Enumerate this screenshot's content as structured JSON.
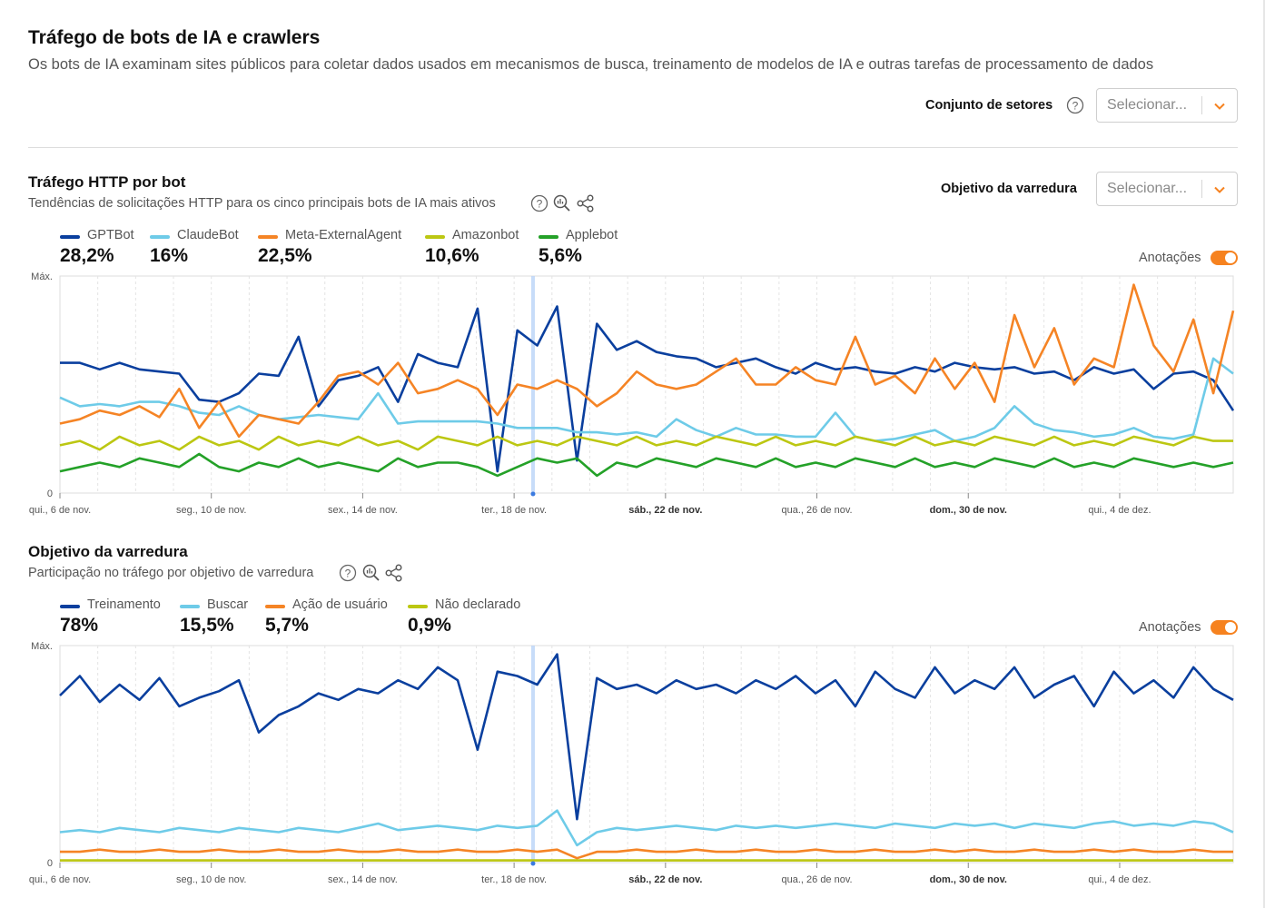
{
  "header": {
    "title": "Tráfego de bots de IA e crawlers",
    "description": "Os bots de IA examinam sites públicos para coletar dados usados em mecanismos de busca, treinamento de modelos de IA e outras tarefas de processamento de dados"
  },
  "filters": {
    "sector_label": "Conjunto de setores",
    "sector_placeholder": "Selecionar...",
    "purpose_label": "Objetivo da varredura",
    "purpose_placeholder": "Selecionar..."
  },
  "colors": {
    "dark_blue": "#0a3f9e",
    "light_blue": "#6ecbe8",
    "orange": "#f58425",
    "olive": "#bcc712",
    "green": "#24a128",
    "accent": "#f6821f"
  },
  "icons": {
    "help": "help-icon",
    "chevron": "chevron-down-icon",
    "explore": "zoom-chart-icon",
    "share": "share-icon"
  },
  "chart_data": [
    {
      "type": "line",
      "title": "Tráfego HTTP por bot",
      "subtitle": "Tendências de solicitações HTTP para os cinco principais bots de IA mais ativos",
      "annotations_label": "Anotações",
      "annotations_on": true,
      "y_top_label": "Máx.",
      "y_bottom_label": "0",
      "ylim": [
        0,
        100
      ],
      "x_ticks": [
        "qui., 6 de nov.",
        "seg., 10 de nov.",
        "sex., 14 de nov.",
        "ter., 18 de nov.",
        "sáb., 22 de nov.",
        "qua., 26 de nov.",
        "dom., 30 de nov.",
        "qui., 4 de dez."
      ],
      "bold_ticks": [
        4,
        6
      ],
      "highlight_day": 12.5,
      "days": 31,
      "series": [
        {
          "name": "GPTBot",
          "share": "28,2%",
          "color": "#0a3f9e",
          "values": [
            60,
            60,
            57,
            60,
            57,
            56,
            55,
            43,
            42,
            46,
            55,
            54,
            72,
            40,
            52,
            54,
            58,
            42,
            64,
            60,
            58,
            85,
            10,
            75,
            68,
            86,
            15,
            78,
            66,
            70,
            65,
            63,
            62,
            58,
            60,
            62,
            58,
            55,
            60,
            57,
            58,
            56,
            55,
            58,
            56,
            60,
            58,
            57,
            58,
            55,
            56,
            52,
            58,
            55,
            57,
            48,
            55,
            56,
            52,
            38
          ]
        },
        {
          "name": "ClaudeBot",
          "share": "16%",
          "color": "#6ecbe8",
          "values": [
            44,
            40,
            41,
            40,
            42,
            42,
            40,
            37,
            36,
            40,
            36,
            34,
            35,
            36,
            35,
            34,
            46,
            32,
            33,
            33,
            33,
            33,
            32,
            30,
            30,
            30,
            28,
            28,
            27,
            28,
            26,
            34,
            29,
            26,
            30,
            27,
            27,
            26,
            26,
            37,
            26,
            24,
            25,
            27,
            29,
            24,
            26,
            30,
            40,
            32,
            29,
            28,
            26,
            27,
            30,
            26,
            25,
            27,
            62,
            55
          ]
        },
        {
          "name": "Meta-ExternalAgent",
          "share": "22,5%",
          "color": "#f58425",
          "values": [
            32,
            34,
            38,
            36,
            40,
            35,
            48,
            30,
            42,
            26,
            36,
            34,
            32,
            42,
            54,
            56,
            50,
            60,
            46,
            48,
            52,
            48,
            36,
            50,
            48,
            52,
            48,
            40,
            46,
            56,
            50,
            48,
            50,
            56,
            62,
            50,
            50,
            58,
            52,
            50,
            72,
            50,
            54,
            46,
            62,
            48,
            60,
            42,
            82,
            58,
            76,
            50,
            62,
            58,
            96,
            68,
            56,
            80,
            46,
            84
          ]
        },
        {
          "name": "Amazonbot",
          "share": "10,6%",
          "color": "#bcc712",
          "values": [
            22,
            24,
            20,
            26,
            22,
            24,
            20,
            26,
            22,
            24,
            20,
            26,
            22,
            24,
            22,
            26,
            22,
            24,
            20,
            26,
            24,
            22,
            26,
            22,
            24,
            22,
            26,
            24,
            22,
            26,
            22,
            24,
            22,
            26,
            24,
            22,
            26,
            22,
            24,
            22,
            26,
            24,
            22,
            26,
            22,
            24,
            22,
            26,
            24,
            22,
            26,
            22,
            24,
            22,
            26,
            24,
            22,
            26,
            24,
            24
          ]
        },
        {
          "name": "Applebot",
          "share": "5,6%",
          "color": "#24a128",
          "values": [
            10,
            12,
            14,
            12,
            16,
            14,
            12,
            18,
            12,
            10,
            14,
            12,
            16,
            12,
            14,
            12,
            10,
            16,
            12,
            14,
            14,
            12,
            8,
            12,
            16,
            14,
            16,
            8,
            14,
            12,
            16,
            14,
            12,
            16,
            14,
            12,
            16,
            12,
            14,
            12,
            16,
            14,
            12,
            16,
            12,
            14,
            12,
            16,
            14,
            12,
            16,
            12,
            14,
            12,
            16,
            14,
            12,
            14,
            12,
            14
          ]
        }
      ]
    },
    {
      "type": "line",
      "title": "Objetivo da varredura",
      "subtitle": "Participação no tráfego por objetivo de varredura",
      "annotations_label": "Anotações",
      "annotations_on": true,
      "y_top_label": "Máx.",
      "y_bottom_label": "0",
      "ylim": [
        0,
        100
      ],
      "x_ticks": [
        "qui., 6 de nov.",
        "seg., 10 de nov.",
        "sex., 14 de nov.",
        "ter., 18 de nov.",
        "sáb., 22 de nov.",
        "qua., 26 de nov.",
        "dom., 30 de nov.",
        "qui., 4 de dez."
      ],
      "bold_ticks": [
        4,
        6
      ],
      "highlight_day": 12.5,
      "days": 31,
      "series": [
        {
          "name": "Treinamento",
          "share": "78%",
          "color": "#0a3f9e",
          "values": [
            77,
            86,
            74,
            82,
            75,
            85,
            72,
            76,
            79,
            84,
            60,
            68,
            72,
            78,
            75,
            80,
            78,
            84,
            80,
            90,
            84,
            52,
            88,
            86,
            82,
            96,
            20,
            85,
            80,
            82,
            78,
            84,
            80,
            82,
            78,
            84,
            80,
            86,
            78,
            84,
            72,
            88,
            80,
            76,
            90,
            78,
            84,
            80,
            90,
            76,
            82,
            86,
            72,
            88,
            78,
            84,
            76,
            90,
            80,
            75
          ]
        },
        {
          "name": "Buscar",
          "share": "15,5%",
          "color": "#6ecbe8",
          "values": [
            14,
            15,
            14,
            16,
            15,
            14,
            16,
            15,
            14,
            16,
            15,
            14,
            16,
            15,
            14,
            16,
            18,
            15,
            16,
            17,
            16,
            15,
            17,
            16,
            17,
            24,
            8,
            14,
            16,
            15,
            16,
            17,
            16,
            15,
            17,
            16,
            17,
            16,
            17,
            18,
            17,
            16,
            18,
            17,
            16,
            18,
            17,
            18,
            16,
            18,
            17,
            16,
            18,
            19,
            17,
            18,
            17,
            19,
            18,
            14
          ]
        },
        {
          "name": "Ação de usuário",
          "share": "5,7%",
          "color": "#f58425",
          "values": [
            5,
            5,
            6,
            5,
            5,
            6,
            5,
            5,
            6,
            5,
            5,
            6,
            5,
            5,
            6,
            5,
            5,
            6,
            5,
            5,
            6,
            5,
            5,
            6,
            5,
            6,
            2,
            5,
            5,
            6,
            5,
            5,
            6,
            5,
            5,
            6,
            5,
            5,
            6,
            5,
            5,
            6,
            5,
            5,
            6,
            5,
            6,
            5,
            5,
            6,
            5,
            5,
            6,
            5,
            6,
            5,
            5,
            6,
            5,
            5
          ]
        },
        {
          "name": "Não declarado",
          "share": "0,9%",
          "color": "#bcc712",
          "values": [
            1,
            1,
            1,
            1,
            1,
            1,
            1,
            1,
            1,
            1,
            1,
            1,
            1,
            1,
            1,
            1,
            1,
            1,
            1,
            1,
            1,
            1,
            1,
            1,
            1,
            1,
            1,
            1,
            1,
            1,
            1,
            1,
            1,
            1,
            1,
            1,
            1,
            1,
            1,
            1,
            1,
            1,
            1,
            1,
            1,
            1,
            1,
            1,
            1,
            1,
            1,
            1,
            1,
            1,
            1,
            1,
            1,
            1,
            1,
            1
          ]
        }
      ]
    }
  ]
}
